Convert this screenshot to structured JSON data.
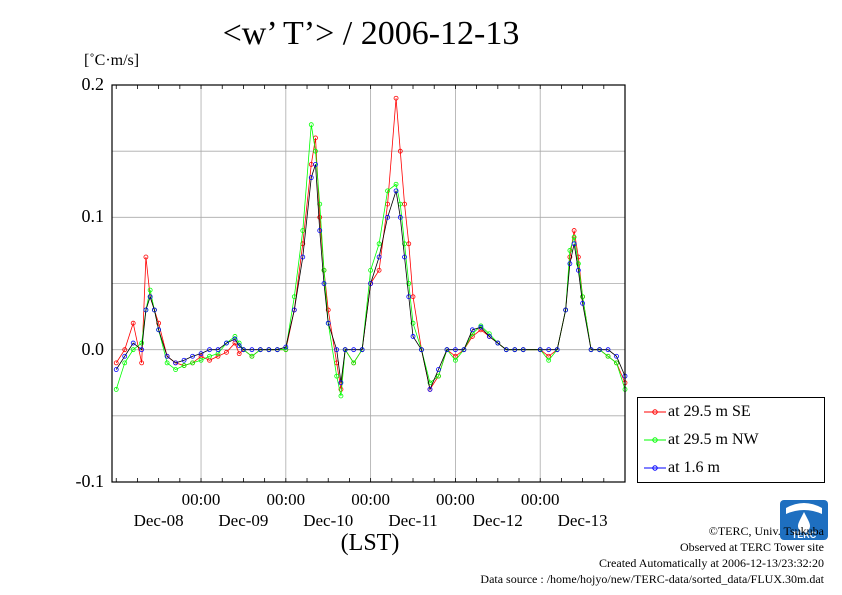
{
  "title": "<w’ T’> / 2006-12-13",
  "units": "[˚C·m/s]",
  "xlabel": "(LST)",
  "credits": {
    "copyright": "©TERC, Univ. Tsukuba",
    "site": "Observed at TERC Tower site",
    "created": "Created Automatically at 2006-12-13/23:32:20",
    "source": "Data source : /home/hojyo/new/TERC-data/sorted_data/FLUX.30m.dat"
  },
  "logo_text": "TERC",
  "chart_data": {
    "type": "line",
    "title": "<w’ T’> / 2006-12-13",
    "xlabel": "(LST)",
    "ylabel": "[˚C·m/s]",
    "ylim": [
      -0.1,
      0.2
    ],
    "yticks": [
      "0.2",
      "0.1",
      "0.0",
      "-0.1"
    ],
    "xlim_days": [
      -0.05,
      6.0
    ],
    "x_time_ticks": [
      "00:00",
      "00:00",
      "00:00",
      "00:00",
      "00:00"
    ],
    "x_date_labels": [
      "Dec-08",
      "Dec-09",
      "Dec-10",
      "Dec-11",
      "Dec-12",
      "Dec-13"
    ],
    "grid": true,
    "legend_position": "right",
    "series": [
      {
        "name": "at 29.5 m SE",
        "color": "#ff0000",
        "x": [
          0.0,
          0.1,
          0.2,
          0.3,
          0.35,
          0.4,
          0.45,
          0.5,
          0.6,
          0.7,
          0.8,
          0.9,
          1.0,
          1.1,
          1.2,
          1.3,
          1.4,
          1.45,
          1.5,
          1.6,
          1.7,
          1.8,
          1.9,
          2.0,
          2.1,
          2.2,
          2.3,
          2.35,
          2.4,
          2.45,
          2.5,
          2.6,
          2.65,
          2.7,
          2.8,
          2.9,
          3.0,
          3.1,
          3.2,
          3.3,
          3.35,
          3.4,
          3.45,
          3.5,
          3.6,
          3.7,
          3.8,
          3.9,
          4.0,
          4.1,
          4.2,
          4.3,
          4.4,
          4.5,
          4.6,
          4.7,
          4.8,
          5.0,
          5.1,
          5.2,
          5.3,
          5.35,
          5.4,
          5.45,
          5.5,
          5.6,
          5.7,
          5.8,
          5.9,
          6.0
        ],
        "y": [
          -0.01,
          0.0,
          0.02,
          -0.01,
          0.07,
          0.04,
          0.03,
          0.02,
          -0.005,
          -0.01,
          -0.012,
          -0.01,
          -0.005,
          -0.008,
          -0.005,
          -0.002,
          0.005,
          -0.003,
          0.0,
          -0.005,
          0.0,
          0.0,
          0.0,
          0.0,
          0.03,
          0.08,
          0.14,
          0.16,
          0.1,
          0.06,
          0.03,
          -0.01,
          -0.03,
          0.0,
          -0.01,
          0.0,
          0.05,
          0.06,
          0.11,
          0.19,
          0.15,
          0.11,
          0.08,
          0.04,
          0.0,
          -0.03,
          -0.02,
          0.0,
          -0.005,
          0.0,
          0.01,
          0.015,
          0.01,
          0.005,
          0.0,
          0.0,
          0.0,
          0.0,
          -0.005,
          0.0,
          0.03,
          0.07,
          0.09,
          0.07,
          0.04,
          0.0,
          0.0,
          -0.005,
          -0.01,
          -0.025
        ]
      },
      {
        "name": "at 29.5 m NW",
        "color": "#00ff00",
        "x": [
          0.0,
          0.1,
          0.2,
          0.3,
          0.35,
          0.4,
          0.45,
          0.5,
          0.6,
          0.7,
          0.8,
          0.9,
          1.0,
          1.1,
          1.2,
          1.3,
          1.4,
          1.45,
          1.5,
          1.6,
          1.7,
          1.8,
          1.9,
          2.0,
          2.1,
          2.2,
          2.3,
          2.35,
          2.4,
          2.45,
          2.5,
          2.6,
          2.65,
          2.7,
          2.8,
          2.9,
          3.0,
          3.1,
          3.2,
          3.3,
          3.35,
          3.4,
          3.45,
          3.5,
          3.6,
          3.7,
          3.8,
          3.9,
          4.0,
          4.1,
          4.2,
          4.3,
          4.4,
          4.5,
          4.6,
          4.7,
          4.8,
          5.0,
          5.1,
          5.2,
          5.3,
          5.35,
          5.4,
          5.45,
          5.5,
          5.6,
          5.7,
          5.8,
          5.9,
          6.0
        ],
        "y": [
          -0.03,
          -0.01,
          0.0,
          0.005,
          0.03,
          0.045,
          0.03,
          0.015,
          -0.01,
          -0.015,
          -0.012,
          -0.01,
          -0.008,
          -0.005,
          -0.003,
          0.005,
          0.01,
          0.005,
          0.0,
          -0.005,
          0.0,
          0.0,
          0.0,
          0.0,
          0.04,
          0.09,
          0.17,
          0.15,
          0.11,
          0.06,
          0.02,
          -0.02,
          -0.035,
          0.0,
          -0.01,
          0.0,
          0.06,
          0.08,
          0.12,
          0.125,
          0.11,
          0.08,
          0.05,
          0.02,
          0.0,
          -0.025,
          -0.02,
          0.0,
          -0.008,
          0.0,
          0.012,
          0.018,
          0.012,
          0.005,
          0.0,
          0.0,
          0.0,
          0.0,
          -0.008,
          0.0,
          0.03,
          0.075,
          0.085,
          0.065,
          0.04,
          0.0,
          0.0,
          -0.005,
          -0.01,
          -0.03
        ]
      },
      {
        "name": "at 1.6 m",
        "color": "#0000ff",
        "x": [
          0.0,
          0.1,
          0.2,
          0.3,
          0.35,
          0.4,
          0.45,
          0.5,
          0.6,
          0.7,
          0.8,
          0.9,
          1.0,
          1.1,
          1.2,
          1.3,
          1.4,
          1.45,
          1.5,
          1.6,
          1.7,
          1.8,
          1.9,
          2.0,
          2.1,
          2.2,
          2.3,
          2.35,
          2.4,
          2.45,
          2.5,
          2.6,
          2.65,
          2.7,
          2.8,
          2.9,
          3.0,
          3.1,
          3.2,
          3.3,
          3.35,
          3.4,
          3.45,
          3.5,
          3.6,
          3.7,
          3.8,
          3.9,
          4.0,
          4.1,
          4.2,
          4.3,
          4.4,
          4.5,
          4.6,
          4.7,
          4.8,
          5.0,
          5.1,
          5.2,
          5.3,
          5.35,
          5.4,
          5.45,
          5.5,
          5.6,
          5.7,
          5.8,
          5.9,
          6.0
        ],
        "y": [
          -0.015,
          -0.005,
          0.005,
          0.0,
          0.03,
          0.04,
          0.03,
          0.015,
          -0.005,
          -0.01,
          -0.008,
          -0.005,
          -0.003,
          0.0,
          0.0,
          0.005,
          0.008,
          0.003,
          0.0,
          0.0,
          0.0,
          0.0,
          0.0,
          0.002,
          0.03,
          0.07,
          0.13,
          0.14,
          0.09,
          0.05,
          0.02,
          0.0,
          -0.025,
          0.0,
          0.0,
          0.0,
          0.05,
          0.07,
          0.1,
          0.12,
          0.1,
          0.07,
          0.04,
          0.01,
          0.0,
          -0.03,
          -0.015,
          0.0,
          0.0,
          0.0,
          0.015,
          0.017,
          0.01,
          0.005,
          0.0,
          0.0,
          0.0,
          0.0,
          0.0,
          0.0,
          0.03,
          0.065,
          0.08,
          0.06,
          0.035,
          0.0,
          0.0,
          0.0,
          -0.005,
          -0.02
        ]
      }
    ]
  }
}
